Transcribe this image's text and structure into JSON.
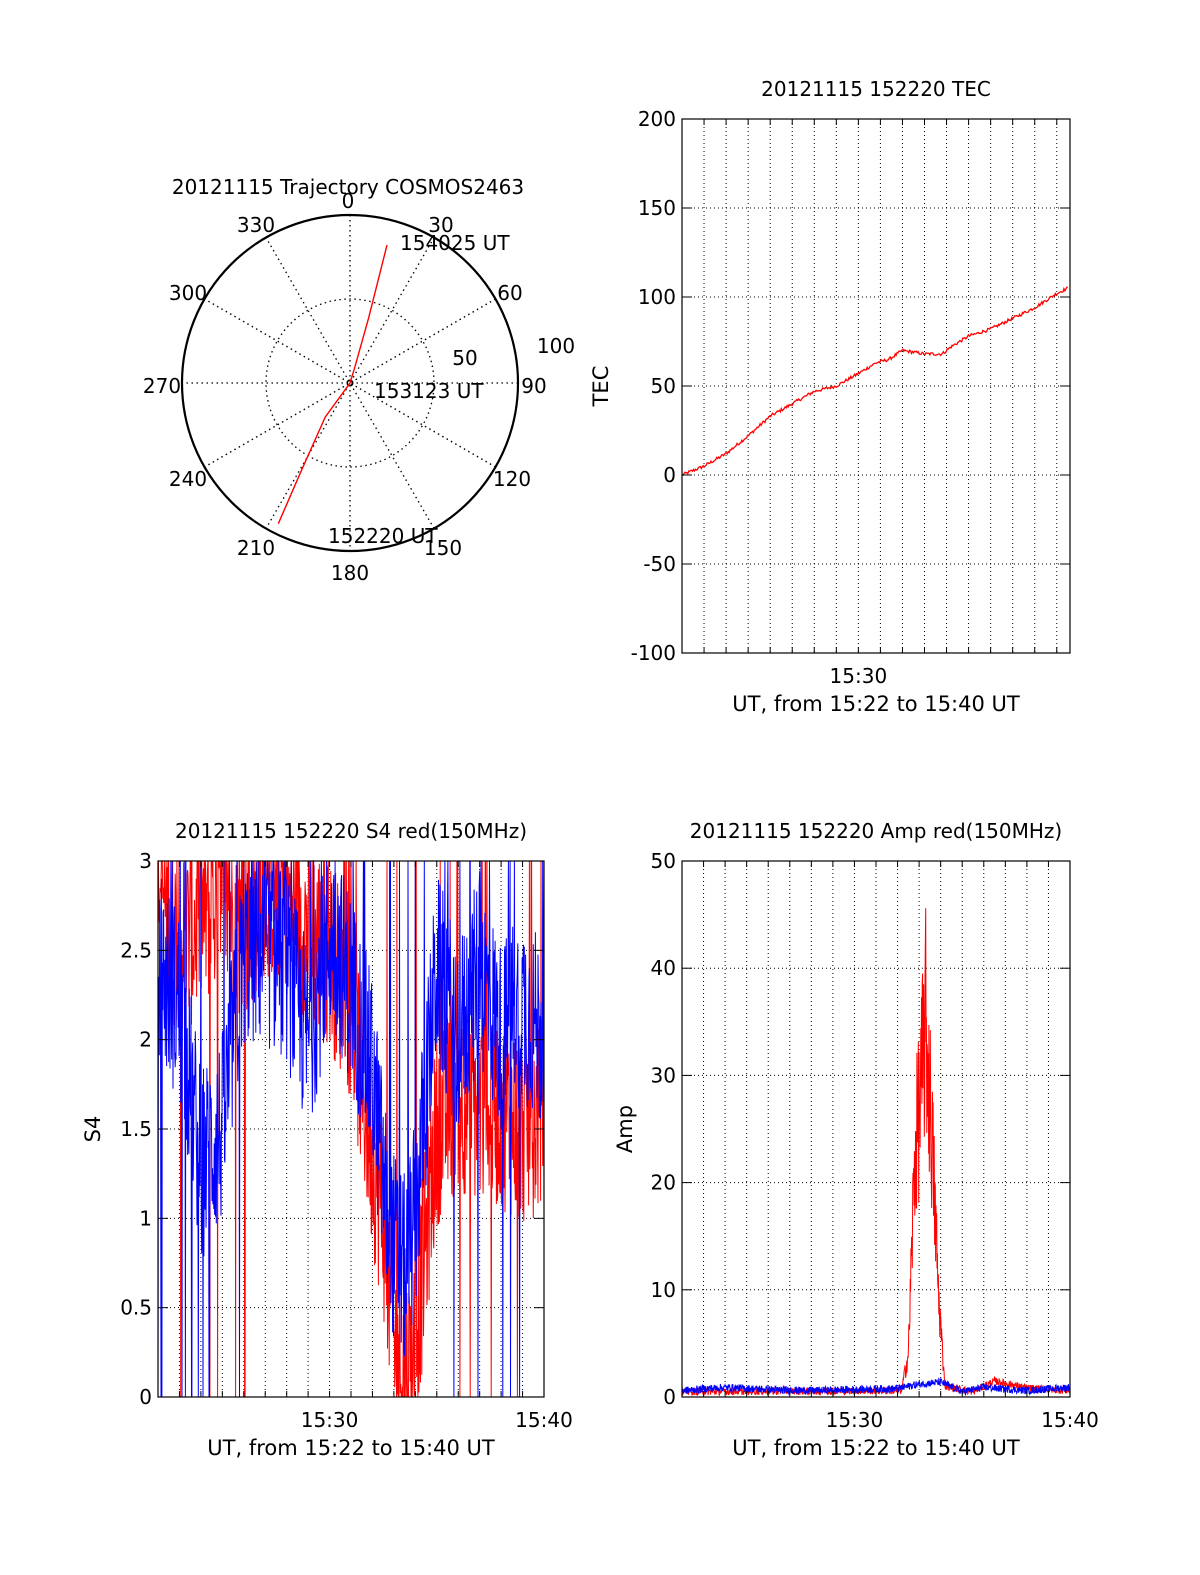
{
  "colors": {
    "red": "#ff0000",
    "blue": "#0000ff",
    "axis": "#000000",
    "grid": "#000000",
    "background": "#ffffff"
  },
  "chart_data": [
    {
      "type": "polar",
      "title": "20121115 Trajectory COSMOS2463",
      "azimuth_labels": [
        "0",
        "30",
        "60",
        "90",
        "120",
        "150",
        "180",
        "210",
        "240",
        "270",
        "300",
        "330"
      ],
      "radial_labels": [
        "50",
        "100"
      ],
      "grid": true,
      "series": [
        {
          "color": "red",
          "points": [
            {
              "azimuth": 207,
              "value": 94
            },
            {
              "azimuth": 209,
              "value": 60
            },
            {
              "azimuth": 216,
              "value": 25
            },
            {
              "azimuth": 90,
              "value": 0
            },
            {
              "azimuth": 17,
              "value": 10
            },
            {
              "azimuth": 16,
              "value": 40
            },
            {
              "azimuth": 15,
              "value": 85
            }
          ]
        }
      ],
      "annotations": [
        {
          "text": "154025 UT",
          "azimuth": 15,
          "value": 85
        },
        {
          "text": "153123 UT",
          "azimuth": 90,
          "value": 0
        },
        {
          "text": "152220 UT",
          "azimuth": 207,
          "value": 94
        }
      ]
    },
    {
      "type": "line",
      "title": "20121115 152220 TEC",
      "xlabel": "UT, from 15:22 to 15:40 UT",
      "ylabel": "TEC",
      "x_tick_labels": [
        {
          "x": "15:30",
          "value": 8
        }
      ],
      "y_tick_labels": [
        "-100",
        "-50",
        "0",
        "50",
        "100",
        "150",
        "200"
      ],
      "ylim": [
        -100,
        200
      ],
      "xlim_minutes": [
        0,
        17.6
      ],
      "grid": true,
      "series": [
        {
          "color": "red",
          "x": [
            0,
            1,
            2,
            3,
            4,
            5,
            6,
            7,
            8,
            8.8,
            9.4,
            10,
            11,
            11.8,
            12.2,
            13,
            14,
            15,
            16,
            17,
            17.5
          ],
          "y": [
            0,
            5,
            12,
            22,
            33,
            40,
            47,
            50,
            57,
            63,
            65,
            70,
            68,
            68,
            72,
            78,
            82,
            88,
            94,
            102,
            105
          ]
        }
      ]
    },
    {
      "type": "line",
      "title": "20121115 152220 S4 red(150MHz)",
      "xlabel": "UT, from 15:22 to 15:40 UT",
      "ylabel": "S4",
      "x_tick_labels": [
        {
          "x": "15:30",
          "value": 8
        },
        {
          "x": "15:40",
          "value": 18
        }
      ],
      "y_tick_labels": [
        "0",
        "0.5",
        "1",
        "1.5",
        "2",
        "2.5",
        "3"
      ],
      "ylim": [
        0,
        3
      ],
      "xlim_minutes": [
        0,
        18
      ],
      "grid": true,
      "series": [
        {
          "color": "red",
          "x": [
            0,
            1,
            2,
            3,
            4,
            5,
            6,
            7,
            8,
            9,
            9.8,
            10.5,
            11,
            11.5,
            12,
            13,
            14,
            15,
            16,
            17,
            18
          ],
          "y": [
            2.9,
            2.5,
            2.7,
            2.8,
            2.6,
            2.9,
            2.8,
            2.6,
            2.5,
            2.2,
            1.5,
            1.0,
            0.3,
            0.15,
            0.3,
            1.5,
            1.7,
            1.6,
            1.6,
            1.5,
            1.6
          ]
        },
        {
          "color": "blue",
          "x": [
            0,
            1,
            2,
            3,
            4,
            5,
            6,
            7,
            8,
            9,
            10,
            10.8,
            11.5,
            12,
            13,
            14,
            15,
            16,
            17,
            18
          ],
          "y": [
            2.4,
            2.2,
            1.3,
            1.5,
            2.5,
            2.5,
            2.4,
            2.0,
            2.6,
            2.3,
            1.8,
            0.9,
            0.7,
            1.0,
            2.4,
            2.0,
            2.4,
            2.0,
            2.2,
            2.0
          ]
        }
      ]
    },
    {
      "type": "line",
      "title": "20121115 152220 Amp red(150MHz)",
      "xlabel": "UT, from 15:22 to 15:40 UT",
      "ylabel": "Amp",
      "x_tick_labels": [
        {
          "x": "15:30",
          "value": 8
        },
        {
          "x": "15:40",
          "value": 18
        }
      ],
      "y_tick_labels": [
        "0",
        "10",
        "20",
        "30",
        "40",
        "50"
      ],
      "ylim": [
        0,
        50
      ],
      "xlim_minutes": [
        0,
        18
      ],
      "grid": true,
      "series": [
        {
          "color": "red",
          "x": [
            0,
            10.2,
            10.5,
            10.8,
            11.1,
            11.3,
            11.6,
            11.9,
            12.2,
            13.5,
            14.5,
            16.1,
            18
          ],
          "y": [
            0.5,
            0.6,
            5,
            28,
            36,
            44,
            30,
            12,
            1,
            0.5,
            1.5,
            0.8,
            0.6
          ]
        },
        {
          "color": "blue",
          "x": [
            0,
            2,
            4,
            6,
            8,
            10,
            11,
            12,
            13,
            14,
            16,
            18
          ],
          "y": [
            0.6,
            0.9,
            0.7,
            0.6,
            0.7,
            0.8,
            1.2,
            1.4,
            0.5,
            0.9,
            0.6,
            0.9
          ]
        }
      ]
    }
  ]
}
